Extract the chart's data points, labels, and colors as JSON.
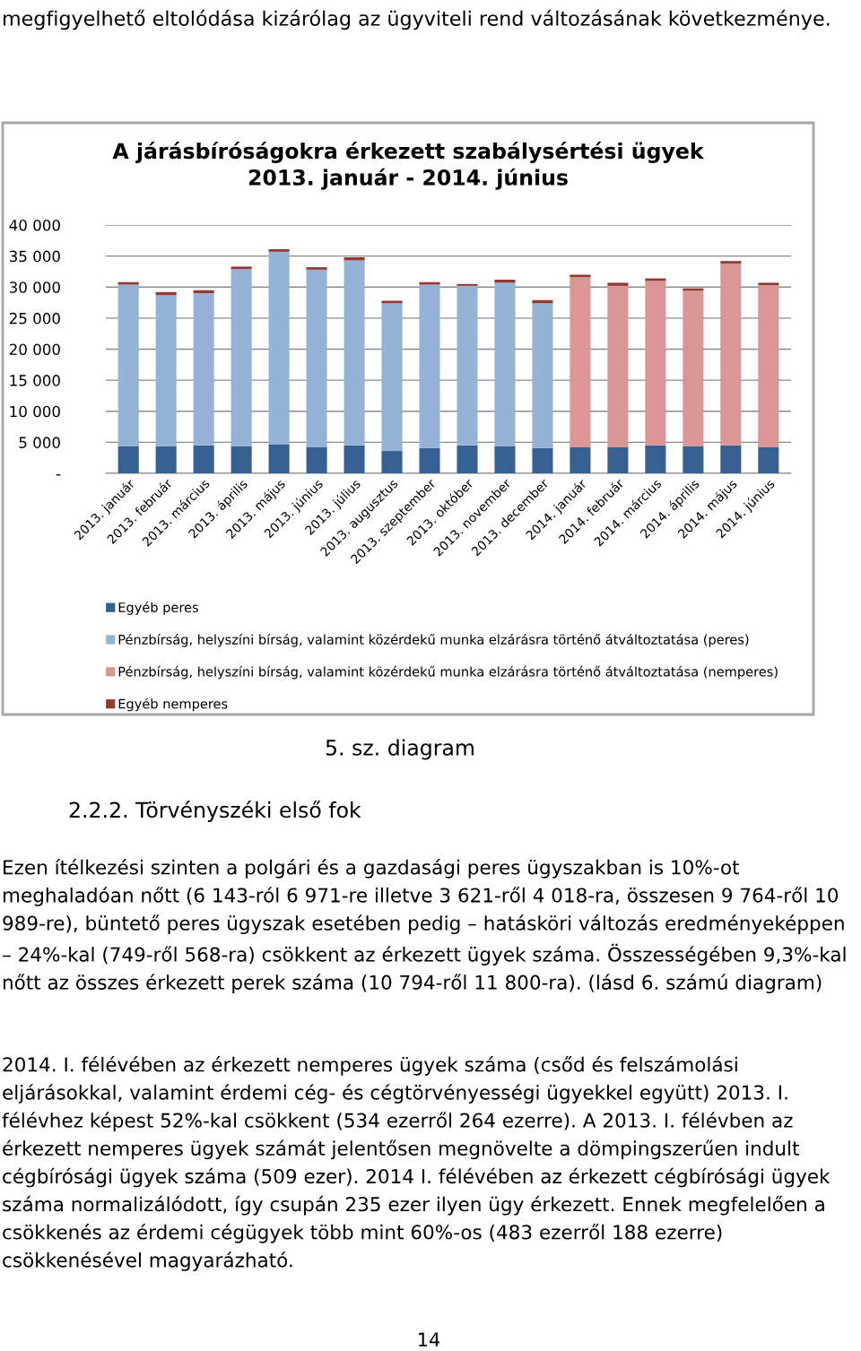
{
  "chart_data": {
    "type": "bar",
    "stacked": true,
    "title": "A járásbíróságokra érkezett szabálysértési ügyek\n2013. január - 2014. június",
    "categories": [
      "2013. január",
      "2013. február",
      "2013. március",
      "2013. április",
      "2013. május",
      "2013. június",
      "2013. július",
      "2013. augusztus",
      "2013. szeptember",
      "2013. október",
      "2013. november",
      "2013. december",
      "2014. január",
      "2014. február",
      "2014. március",
      "2014. április",
      "2014. május",
      "2014. június"
    ],
    "series": [
      {
        "name": "Egyéb peres",
        "color": "#376092",
        "values": [
          4400,
          4400,
          4500,
          4400,
          4700,
          4200,
          4500,
          3600,
          4100,
          4500,
          4400,
          4100,
          4200,
          4200,
          4500,
          4400,
          4500,
          4200
        ]
      },
      {
        "name": "Pénzbírság, helyszíni bírság, valamint közérdekű munka elzárásra történő átváltoztatása (peres)",
        "color": "#95b3d7",
        "values": [
          26000,
          24300,
          24500,
          28500,
          31000,
          28600,
          29800,
          23800,
          26300,
          25700,
          26300,
          23300,
          null,
          null,
          null,
          null,
          null,
          null
        ]
      },
      {
        "name": "Pénzbírság, helyszíni bírság, valamint közérdekű munka elzárásra történő átváltoztatása (nemperes)",
        "color": "#d99694",
        "values": [
          null,
          null,
          null,
          null,
          null,
          null,
          null,
          null,
          null,
          null,
          null,
          null,
          27400,
          26000,
          26500,
          25000,
          29300,
          26100
        ]
      },
      {
        "name": "Egyéb nemperes",
        "color": "#953735",
        "values": [
          400,
          500,
          500,
          400,
          400,
          400,
          500,
          400,
          400,
          300,
          500,
          500,
          400,
          500,
          400,
          400,
          400,
          400
        ]
      }
    ],
    "ylim": [
      0,
      40000
    ],
    "yticks": [
      {
        "value": 0,
        "label": "-"
      },
      {
        "value": 5000,
        "label": "5 000"
      },
      {
        "value": 10000,
        "label": "10 000"
      },
      {
        "value": 15000,
        "label": "15 000"
      },
      {
        "value": 20000,
        "label": "20 000"
      },
      {
        "value": 25000,
        "label": "25 000"
      },
      {
        "value": 30000,
        "label": "30 000"
      },
      {
        "value": 35000,
        "label": "35 000"
      },
      {
        "value": 40000,
        "label": "40 000"
      }
    ],
    "grid": "y",
    "legend": "bottom",
    "annotations": [
      "megfigyelhető eltolódása kizárólag az ügyviteli rend változásának következménye.",
      "5. sz. diagram",
      "2.2.2. Törvényszéki első fok",
      "Ezen ítélkezési szinten a polgári és a gazdasági peres ügyszakban is 10%-ot meghaladóan nőtt (6 143-ról 6 971-re illetve 3 621-ről 4 018-ra, összesen 9 764-ről 10 989-re), büntető peres ügyszak esetében pedig – hatásköri változás eredményeképpen – 24%-kal (749-ről 568-ra) csökkent az érkezett ügyek száma. Összességében 9,3%-kal nőtt az összes érkezett perek száma (10 794-ről 11 800-ra). (lásd 6. számú diagram)",
      "2014. I. félévében az érkezett nemperes ügyek száma (csőd és felszámolási eljárásokkal, valamint érdemi cég- és cégtörvényességi ügyekkel együtt) 2013. I. félévhez képest 52%-kal csökkent (534 ezerről 264 ezerre). A 2013. I. félévben az érkezett nemperes ügyek számát jelentősen megnövelte a dömpingszerűen indult cégbírósági ügyek száma (509 ezer). 2014 I. félévében az érkezett cégbírósági ügyek száma normalizálódott, így csupán 235 ezer ilyen ügy érkezett. Ennek megfelelően a csökkenés az érdemi cégügyek több mint 60%-os (483 ezerről 188 ezerre) csökkenésével magyarázható.",
      "14"
    ]
  }
}
